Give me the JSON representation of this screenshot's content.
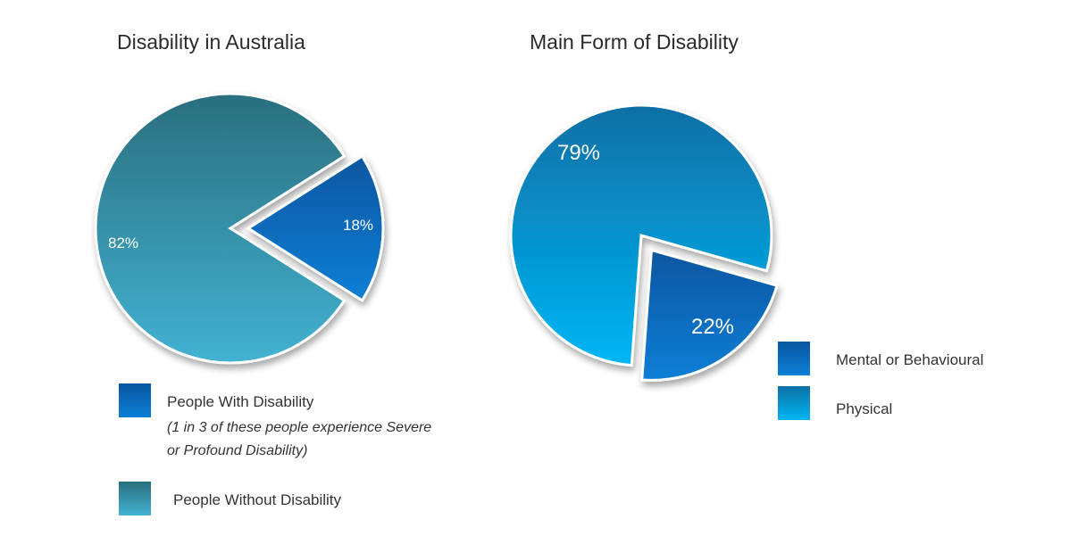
{
  "colors": {
    "teal_dark": "#2a6f7e",
    "teal_light": "#43b2d2",
    "blue_dark": "#0a56a0",
    "blue_mid": "#0a7fd6",
    "sky_dark": "#0b6fa4",
    "sky_light": "#02b6f5"
  },
  "chart_data": [
    {
      "type": "pie",
      "title": "Disability in Australia",
      "slices": [
        {
          "name": "People With Disability",
          "value": 18,
          "label": "18%",
          "exploded": true
        },
        {
          "name": "People Without Disability",
          "value": 82,
          "label": "82%",
          "exploded": false
        }
      ],
      "legend": [
        {
          "label": "People With Disability",
          "note": "(1 in 3 of these people experience Severe or Profound Disability)"
        },
        {
          "label": "People Without Disability"
        }
      ]
    },
    {
      "type": "pie",
      "title": "Main Form of Disability",
      "slices": [
        {
          "name": "Mental or Behavioural",
          "value": 22,
          "label": "22%",
          "exploded": true
        },
        {
          "name": "Physical",
          "value": 79,
          "label": "79%",
          "exploded": false
        }
      ],
      "legend": [
        {
          "label": "Mental or Behavioural"
        },
        {
          "label": "Physical"
        }
      ]
    }
  ]
}
